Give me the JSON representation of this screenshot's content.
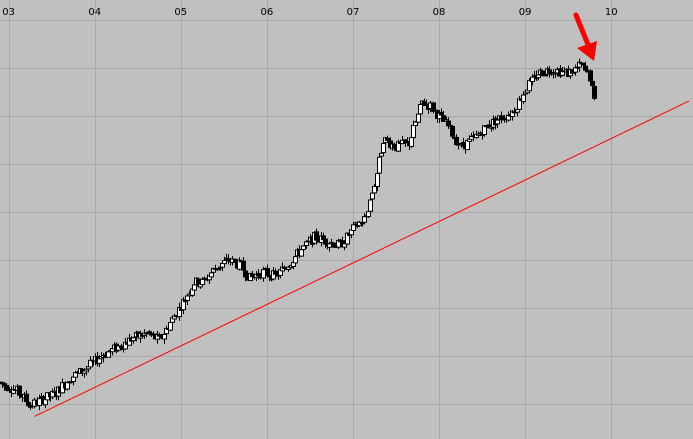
{
  "chart_data": {
    "type": "candlestick",
    "x_tick_labels": [
      "03",
      "04",
      "05",
      "06",
      "07",
      "08",
      "09",
      "10"
    ],
    "x_tick_positions": [
      2003,
      2004,
      2005,
      2006,
      2007,
      2008,
      2009,
      2010
    ],
    "xlim": [
      2002.9,
      2010.95
    ],
    "ylim": [
      0,
      100
    ],
    "grid": true,
    "background_color": "#c0c0c0",
    "grid_color": "#a8a8a8",
    "candle_color": "#000000",
    "trendline": {
      "color": "#ff0000",
      "start": [
        2003.3,
        3.3
      ],
      "end": [
        2010.9,
        80.2
      ]
    },
    "annotation": {
      "type": "arrow",
      "color": "#ff0000",
      "points_to": "last-candle"
    },
    "anchors": [
      [
        2002.9,
        11.5
      ],
      [
        2003.1,
        9.5
      ],
      [
        2003.25,
        6
      ],
      [
        2003.4,
        7.5
      ],
      [
        2003.55,
        9
      ],
      [
        2003.7,
        12.5
      ],
      [
        2003.9,
        15
      ],
      [
        2004.1,
        18.5
      ],
      [
        2004.25,
        20
      ],
      [
        2004.45,
        22.5
      ],
      [
        2004.6,
        23.5
      ],
      [
        2004.75,
        22
      ],
      [
        2004.9,
        27
      ],
      [
        2005.05,
        32
      ],
      [
        2005.15,
        36
      ],
      [
        2005.25,
        36
      ],
      [
        2005.4,
        39.5
      ],
      [
        2005.55,
        41.5
      ],
      [
        2005.7,
        40
      ],
      [
        2005.8,
        37
      ],
      [
        2005.95,
        38.5
      ],
      [
        2006.1,
        37.5
      ],
      [
        2006.25,
        40.5
      ],
      [
        2006.4,
        44
      ],
      [
        2006.55,
        47
      ],
      [
        2006.7,
        46
      ],
      [
        2006.85,
        45
      ],
      [
        2007.0,
        49
      ],
      [
        2007.15,
        52
      ],
      [
        2007.25,
        60
      ],
      [
        2007.35,
        71
      ],
      [
        2007.5,
        69
      ],
      [
        2007.65,
        70
      ],
      [
        2007.8,
        80
      ],
      [
        2007.9,
        79
      ],
      [
        2008.1,
        74
      ],
      [
        2008.25,
        69
      ],
      [
        2008.4,
        71
      ],
      [
        2008.55,
        74
      ],
      [
        2008.7,
        76
      ],
      [
        2008.85,
        77.5
      ],
      [
        2009.0,
        83
      ],
      [
        2009.15,
        87
      ],
      [
        2009.3,
        88
      ],
      [
        2009.5,
        87
      ],
      [
        2009.65,
        89
      ],
      [
        2009.75,
        86
      ],
      [
        2009.8,
        80
      ]
    ]
  }
}
